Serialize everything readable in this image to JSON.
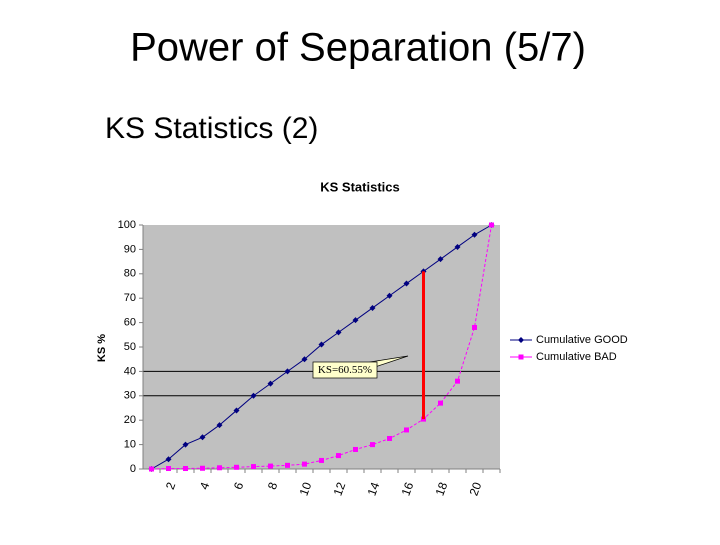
{
  "slide_title": "Power of Separation (5/7)",
  "bullet": "KS Statistics (2)",
  "chart_data": {
    "type": "line",
    "title": "KS Statistics",
    "y_label": "KS %",
    "categories": [
      null,
      "2",
      null,
      "4",
      null,
      "6",
      null,
      "8",
      null,
      "10",
      null,
      "12",
      null,
      "14",
      null,
      "16",
      null,
      "18",
      null,
      "20",
      null
    ],
    "series": [
      {
        "name": "Cumulative GOOD",
        "color": "#000080",
        "values": [
          0,
          4,
          10,
          13,
          18,
          24,
          30,
          35,
          40,
          45,
          51,
          56,
          61,
          66,
          71,
          76,
          81,
          86,
          91,
          96,
          100
        ]
      },
      {
        "name": "Cumulative BAD",
        "color": "#ff00ff",
        "values": [
          0,
          0.2,
          0.2,
          0.3,
          0.5,
          0.7,
          1,
          1.2,
          1.5,
          2,
          3.5,
          5.5,
          8,
          10,
          12.5,
          16,
          20.45,
          27,
          36,
          58,
          100
        ]
      }
    ],
    "annotation": "KS=60.55%",
    "ylim": [
      0,
      100
    ],
    "yticks": [
      0,
      10,
      20,
      30,
      40,
      50,
      60,
      70,
      80,
      90,
      100
    ],
    "grid_lines": [
      30,
      40
    ],
    "legend": "right",
    "plot_background": "#c0c0c0",
    "ks_color": "#ff0000"
  }
}
